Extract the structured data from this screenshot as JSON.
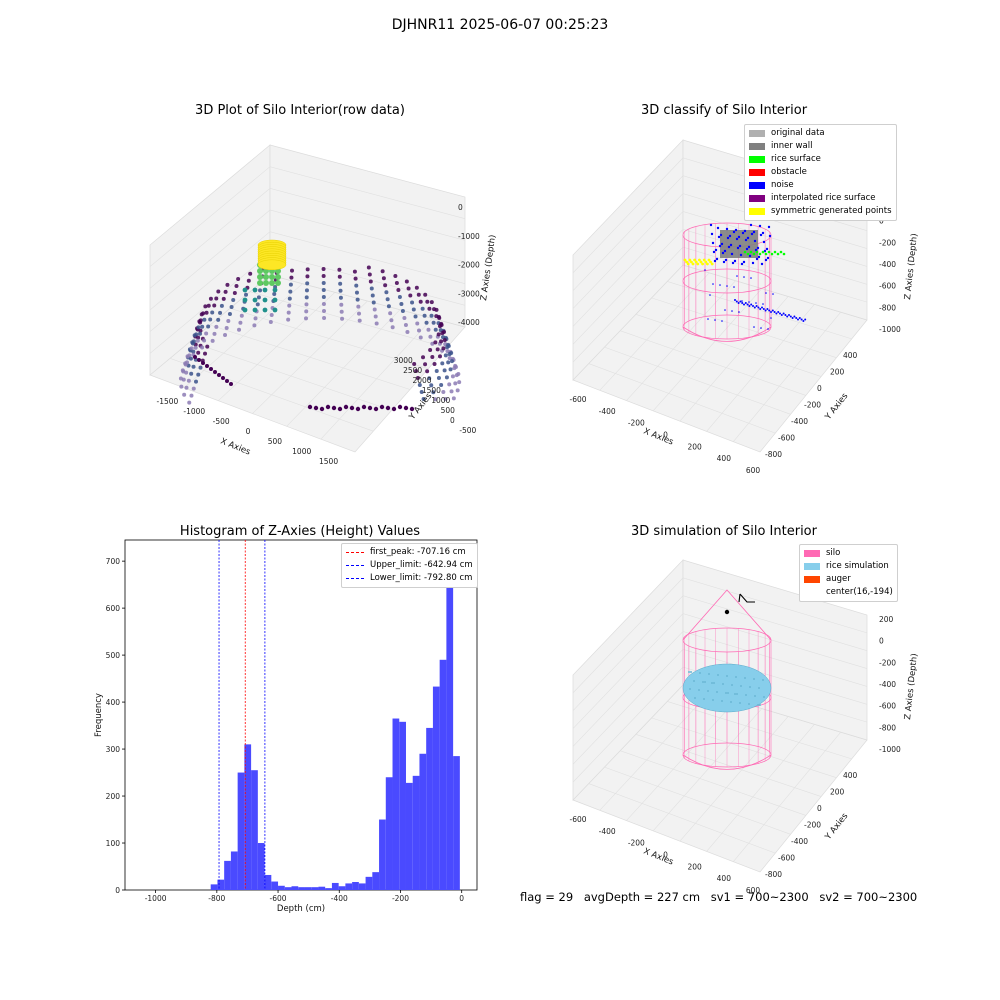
{
  "figure_title": "DJHNR11 2025-06-07 00:25:23",
  "status": {
    "flag": "flag = 29",
    "avg_depth": "avgDepth = 227 cm",
    "sv1": "sv1 = 700~2300",
    "sv2": "sv2 = 700~2300"
  },
  "chart_data": [
    {
      "type": "scatter",
      "title": "3D Plot of Silo Interior(row data)",
      "xlabel": "X Axies",
      "ylabel": "Y Axies",
      "zlabel": "Z Axies (Depth)",
      "x_ticks": [
        "-1500",
        "-1000",
        "-500",
        "0",
        "500",
        "1000",
        "1500"
      ],
      "y_ticks": [
        "-500",
        "0",
        "500",
        "1000",
        "1500",
        "2000",
        "2500",
        "3000"
      ],
      "z_ticks": [
        "0",
        "-1000",
        "-2000",
        "-3000",
        "-4000"
      ],
      "colormap": [
        "#440154",
        "#3b528b",
        "#21918c",
        "#5ec962",
        "#fde725"
      ],
      "points_color": "#8c7bb4"
    },
    {
      "type": "scatter",
      "title": "3D classify of Silo Interior",
      "xlabel": "X Axies",
      "ylabel": "Y Axies",
      "zlabel": "Z Axies (Depth)",
      "x_ticks": [
        "-600",
        "-400",
        "-200",
        "0",
        "200",
        "400",
        "600"
      ],
      "y_ticks": [
        "-800",
        "-600",
        "-400",
        "-200",
        "0",
        "200",
        "400"
      ],
      "z_ticks": [
        "200",
        "0",
        "-200",
        "-400",
        "-600",
        "-800",
        "-1000"
      ],
      "legend": [
        {
          "label": "original data",
          "color": "#b0b0b0"
        },
        {
          "label": "inner wall",
          "color": "#808080"
        },
        {
          "label": "rice surface",
          "color": "#00ff00"
        },
        {
          "label": "obstacle",
          "color": "#ff0000"
        },
        {
          "label": "noise",
          "color": "#0000ff"
        },
        {
          "label": "interpolated rice surface",
          "color": "#800080"
        },
        {
          "label": "symmetric generated points",
          "color": "#ffff00"
        }
      ],
      "wall_color": "#ff69b4"
    },
    {
      "type": "bar",
      "title": "Histogram of Z-Axies (Height) Values",
      "xlabel": "Depth (cm)",
      "ylabel": "Frequency",
      "xlim": [
        -1100,
        50
      ],
      "ylim": [
        0,
        745
      ],
      "x_ticks": [
        -1000,
        -800,
        -600,
        -400,
        -200,
        0
      ],
      "y_ticks": [
        0,
        100,
        200,
        300,
        400,
        500,
        600,
        700
      ],
      "bar_color": "#4a4aff",
      "bin_width": 22,
      "bins": [
        {
          "x": -820,
          "v": 12
        },
        {
          "x": -798,
          "v": 22
        },
        {
          "x": -776,
          "v": 62
        },
        {
          "x": -754,
          "v": 82
        },
        {
          "x": -732,
          "v": 250
        },
        {
          "x": -710,
          "v": 310
        },
        {
          "x": -688,
          "v": 255
        },
        {
          "x": -666,
          "v": 100
        },
        {
          "x": -644,
          "v": 32
        },
        {
          "x": -622,
          "v": 18
        },
        {
          "x": -600,
          "v": 9
        },
        {
          "x": -578,
          "v": 6
        },
        {
          "x": -556,
          "v": 8
        },
        {
          "x": -534,
          "v": 6
        },
        {
          "x": -512,
          "v": 6
        },
        {
          "x": -490,
          "v": 6
        },
        {
          "x": -468,
          "v": 7
        },
        {
          "x": -446,
          "v": 4
        },
        {
          "x": -424,
          "v": 15
        },
        {
          "x": -402,
          "v": 8
        },
        {
          "x": -380,
          "v": 14
        },
        {
          "x": -358,
          "v": 17
        },
        {
          "x": -336,
          "v": 14
        },
        {
          "x": -314,
          "v": 28
        },
        {
          "x": -292,
          "v": 38
        },
        {
          "x": -270,
          "v": 150
        },
        {
          "x": -248,
          "v": 240
        },
        {
          "x": -226,
          "v": 365
        },
        {
          "x": -204,
          "v": 358
        },
        {
          "x": -182,
          "v": 228
        },
        {
          "x": -160,
          "v": 243
        },
        {
          "x": -138,
          "v": 290
        },
        {
          "x": -116,
          "v": 345
        },
        {
          "x": -94,
          "v": 433
        },
        {
          "x": -72,
          "v": 490
        },
        {
          "x": -50,
          "v": 705
        },
        {
          "x": -28,
          "v": 285
        }
      ],
      "vlines": [
        {
          "label": "first_peak: -707.16 cm",
          "x": -707.16,
          "color": "#ff0000"
        },
        {
          "label": "Upper_limit: -642.94 cm",
          "x": -642.94,
          "color": "#0000ff"
        },
        {
          "label": "Lower_limit: -792.80 cm",
          "x": -792.8,
          "color": "#0000ff"
        }
      ]
    },
    {
      "type": "scatter",
      "title": "3D simulation of Silo Interior",
      "xlabel": "X Axies",
      "ylabel": "Y Axies",
      "zlabel": "Z Axies (Depth)",
      "x_ticks": [
        "-600",
        "-400",
        "-200",
        "0",
        "200",
        "400",
        "600"
      ],
      "y_ticks": [
        "-800",
        "-600",
        "-400",
        "-200",
        "0",
        "200",
        "400"
      ],
      "z_ticks": [
        "200",
        "0",
        "-200",
        "-400",
        "-600",
        "-800",
        "-1000"
      ],
      "legend": [
        {
          "label": "silo",
          "color": "#ff69b4"
        },
        {
          "label": "rice simulation",
          "color": "#87ceeb"
        },
        {
          "label": "auger",
          "color": "#ff4500"
        },
        {
          "label": "center(16,-194)",
          "color": ""
        }
      ]
    }
  ]
}
